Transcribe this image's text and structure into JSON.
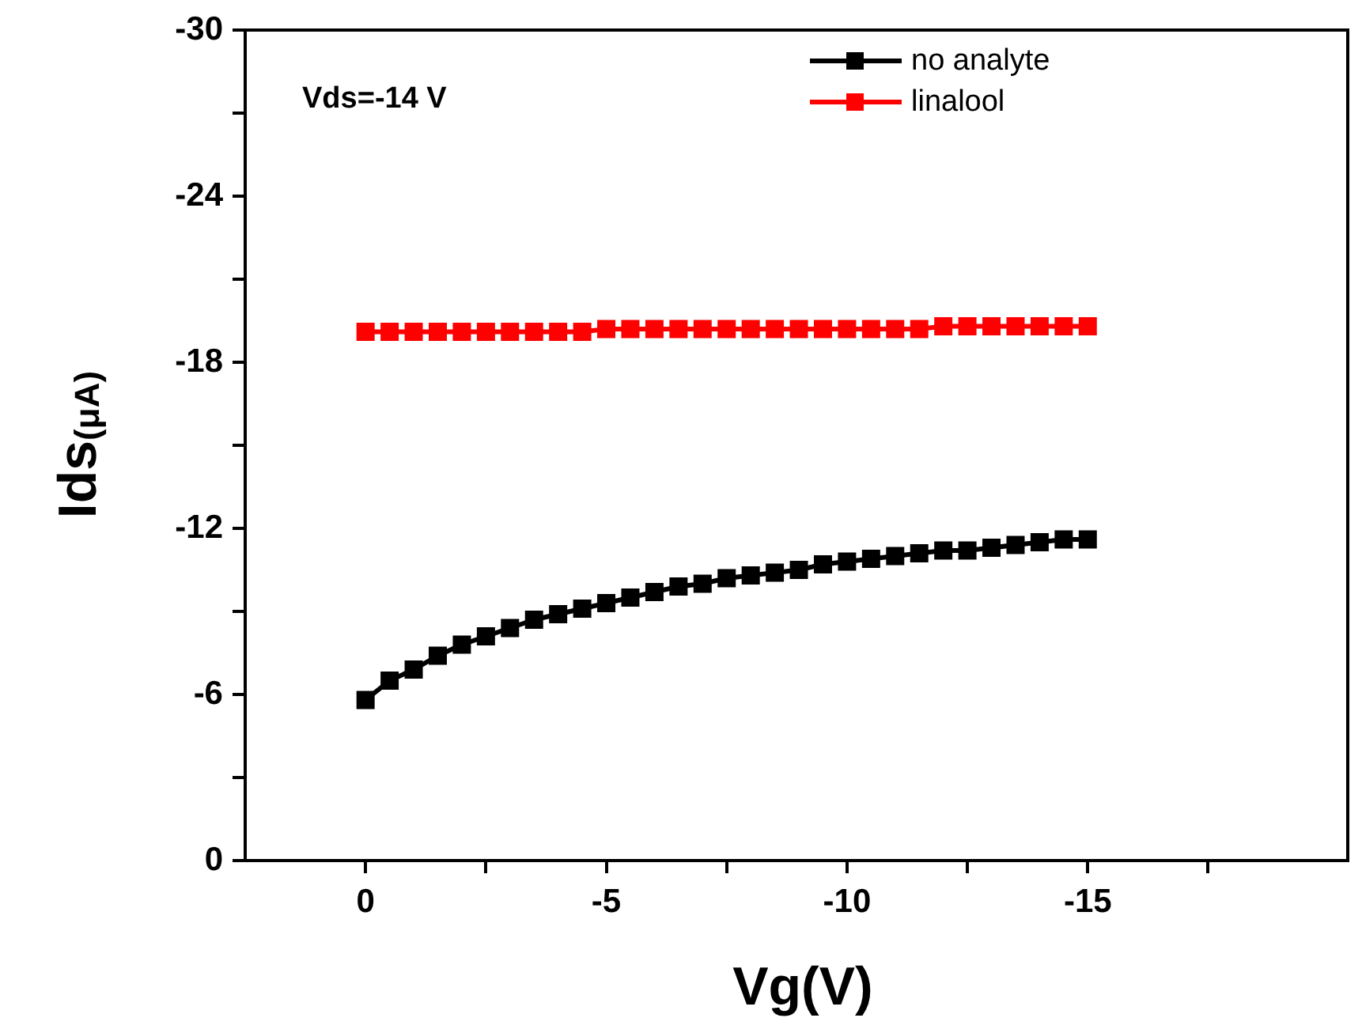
{
  "chart_data": {
    "type": "line",
    "xlabel": "Vg(V)",
    "ylabel": "Ids$_{(μA)}$",
    "annotations": [
      "Vds=-14 V"
    ],
    "x": [
      0,
      -0.5,
      -1,
      -1.5,
      -2,
      -2.5,
      -3,
      -3.5,
      -4,
      -4.5,
      -5,
      -5.5,
      -6,
      -6.5,
      -7,
      -7.5,
      -8,
      -8.5,
      -9,
      -9.5,
      -10,
      -10.5,
      -11,
      -11.5,
      -12,
      -12.5,
      -13,
      -13.5,
      -14,
      -14.5,
      -15
    ],
    "series": [
      {
        "name": "no analyte",
        "color": "#000000",
        "values": [
          -5.8,
          -6.5,
          -6.9,
          -7.4,
          -7.8,
          -8.1,
          -8.4,
          -8.7,
          -8.9,
          -9.1,
          -9.3,
          -9.5,
          -9.7,
          -9.9,
          -10.0,
          -10.2,
          -10.3,
          -10.4,
          -10.5,
          -10.7,
          -10.8,
          -10.9,
          -11.0,
          -11.1,
          -11.2,
          -11.2,
          -11.3,
          -11.4,
          -11.5,
          -11.6,
          -11.6
        ]
      },
      {
        "name": "linalool",
        "color": "#ff0000",
        "values": [
          -19.1,
          -19.1,
          -19.1,
          -19.1,
          -19.1,
          -19.1,
          -19.1,
          -19.1,
          -19.1,
          -19.1,
          -19.2,
          -19.2,
          -19.2,
          -19.2,
          -19.2,
          -19.2,
          -19.2,
          -19.2,
          -19.2,
          -19.2,
          -19.2,
          -19.2,
          -19.2,
          -19.2,
          -19.3,
          -19.3,
          -19.3,
          -19.3,
          -19.3,
          -19.3,
          -19.3
        ]
      }
    ],
    "xlim": [
      2.5,
      -20.4
    ],
    "xticks": [
      0,
      {
        "value": -2.5,
        "label": null
      },
      -5,
      {
        "value": -7.5,
        "label": null
      },
      -10,
      {
        "value": -12.5,
        "label": null
      },
      -15,
      {
        "value": -17.5,
        "label": null
      }
    ],
    "ylim": [
      0,
      -30
    ],
    "yticks": [
      0,
      {
        "value": -3,
        "label": null
      },
      -6,
      {
        "value": -9,
        "label": null
      },
      -12,
      {
        "value": -15,
        "label": null
      },
      -18,
      {
        "value": -21,
        "label": null
      },
      -24,
      {
        "value": -27,
        "label": null
      },
      -30
    ],
    "grid": false,
    "legend": "top right",
    "marker": "square",
    "line_style": "solid"
  }
}
